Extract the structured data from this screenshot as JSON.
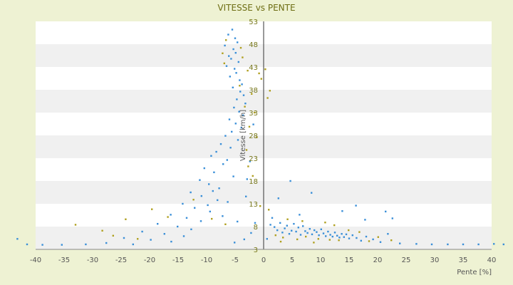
{
  "chart_data": {
    "type": "scatter",
    "title": "VITESSE vs PENTE",
    "xlabel": "Pente [%]",
    "ylabel": "Vitesse [km/h]",
    "xlim": [
      -40,
      40
    ],
    "ylim": [
      3,
      53
    ],
    "xticks": [
      "-40",
      "-35",
      "-30",
      "-25",
      "-20",
      "-15",
      "-10",
      "-5",
      "0",
      "5",
      "10",
      "15",
      "20",
      "25",
      "30",
      "35",
      "40"
    ],
    "yticks": [
      "3",
      "8",
      "13",
      "18",
      "23",
      "28",
      "33",
      "38",
      "43",
      "48",
      "53"
    ],
    "grid": "horizontal alternating bands",
    "legend": "none",
    "colors": {
      "background": "#eef2d3",
      "band_light": "#ffffff",
      "band_dark": "#f0f0f0",
      "series_1": "#3a8fd8",
      "series_2": "#b0a020",
      "axis": "#333333"
    },
    "series": [
      {
        "values": [
          [
            -5.5,
            51.2
          ],
          [
            -6.2,
            50.1
          ],
          [
            -5.0,
            49.3
          ],
          [
            -4.6,
            48.4
          ],
          [
            -6.8,
            47.7
          ],
          [
            -5.3,
            46.9
          ],
          [
            -4.9,
            46.1
          ],
          [
            -6.1,
            45.4
          ],
          [
            -5.7,
            44.8
          ],
          [
            -4.4,
            44.1
          ],
          [
            -6.5,
            43.2
          ],
          [
            -5.1,
            42.6
          ],
          [
            -4.8,
            41.7
          ],
          [
            -5.9,
            40.9
          ],
          [
            -4.2,
            40.1
          ],
          [
            -3.8,
            39.2
          ],
          [
            -5.4,
            38.5
          ],
          [
            -4.1,
            37.6
          ],
          [
            -3.5,
            36.8
          ],
          [
            -4.7,
            35.9
          ],
          [
            -3.2,
            35.0
          ],
          [
            -5.2,
            34.1
          ],
          [
            -4.3,
            33.2
          ],
          [
            -3.6,
            32.4
          ],
          [
            -6.0,
            31.5
          ],
          [
            -4.9,
            30.6
          ],
          [
            -3.9,
            29.7
          ],
          [
            -5.6,
            28.8
          ],
          [
            -6.7,
            27.9
          ],
          [
            -4.5,
            27.0
          ],
          [
            -7.5,
            26.1
          ],
          [
            -5.8,
            25.3
          ],
          [
            -8.3,
            24.4
          ],
          [
            -9.2,
            23.5
          ],
          [
            -6.4,
            22.6
          ],
          [
            -7.1,
            21.7
          ],
          [
            -10.4,
            20.8
          ],
          [
            -8.7,
            19.9
          ],
          [
            -5.3,
            19.0
          ],
          [
            -11.2,
            18.2
          ],
          [
            -9.6,
            17.3
          ],
          [
            -7.8,
            16.4
          ],
          [
            -12.8,
            15.5
          ],
          [
            -10.9,
            14.7
          ],
          [
            -8.1,
            13.8
          ],
          [
            -14.2,
            13.0
          ],
          [
            -12.1,
            12.1
          ],
          [
            -9.4,
            11.3
          ],
          [
            -16.3,
            10.6
          ],
          [
            -13.5,
            9.9
          ],
          [
            -11.0,
            9.2
          ],
          [
            -18.6,
            8.6
          ],
          [
            -15.1,
            8.0
          ],
          [
            -12.7,
            7.4
          ],
          [
            -21.3,
            6.9
          ],
          [
            -17.4,
            6.4
          ],
          [
            -14.0,
            5.9
          ],
          [
            -24.5,
            5.5
          ],
          [
            -19.8,
            5.1
          ],
          [
            -16.2,
            4.7
          ],
          [
            -27.6,
            4.4
          ],
          [
            -22.9,
            4.1
          ],
          [
            -9.8,
            12.7
          ],
          [
            -7.2,
            10.3
          ],
          [
            -4.6,
            9.1
          ],
          [
            -3.1,
            14.6
          ],
          [
            -2.4,
            22.3
          ],
          [
            -1.8,
            30.4
          ],
          [
            -2.9,
            18.4
          ],
          [
            -8.9,
            15.8
          ],
          [
            -6.3,
            13.4
          ],
          [
            -1.5,
            8.8
          ],
          [
            -2.2,
            6.6
          ],
          [
            -3.4,
            5.2
          ],
          [
            -5.1,
            4.5
          ],
          [
            -31.2,
            4.1
          ],
          [
            -35.4,
            4.0
          ],
          [
            -38.8,
            4.0
          ],
          [
            -41.5,
            4.1
          ],
          [
            -43.2,
            5.3
          ],
          [
            1.2,
            8.4
          ],
          [
            1.9,
            7.9
          ],
          [
            2.4,
            7.2
          ],
          [
            2.9,
            8.8
          ],
          [
            3.3,
            6.7
          ],
          [
            3.7,
            7.6
          ],
          [
            4.1,
            8.2
          ],
          [
            4.5,
            6.4
          ],
          [
            4.9,
            7.1
          ],
          [
            5.3,
            8.6
          ],
          [
            5.7,
            6.9
          ],
          [
            6.1,
            7.8
          ],
          [
            6.5,
            6.2
          ],
          [
            6.9,
            8.1
          ],
          [
            7.3,
            7.0
          ],
          [
            7.7,
            6.6
          ],
          [
            8.1,
            7.5
          ],
          [
            8.5,
            6.3
          ],
          [
            8.9,
            7.2
          ],
          [
            9.3,
            6.8
          ],
          [
            9.7,
            6.1
          ],
          [
            10.1,
            7.4
          ],
          [
            10.5,
            6.5
          ],
          [
            10.9,
            5.9
          ],
          [
            11.3,
            6.9
          ],
          [
            11.7,
            6.2
          ],
          [
            12.1,
            5.8
          ],
          [
            12.5,
            6.7
          ],
          [
            12.9,
            6.0
          ],
          [
            13.3,
            5.6
          ],
          [
            13.7,
            6.4
          ],
          [
            14.1,
            5.7
          ],
          [
            14.5,
            6.3
          ],
          [
            15.0,
            5.4
          ],
          [
            15.6,
            6.1
          ],
          [
            16.3,
            5.5
          ],
          [
            17.1,
            4.9
          ],
          [
            18.0,
            5.8
          ],
          [
            19.2,
            5.2
          ],
          [
            20.5,
            4.6
          ],
          [
            21.8,
            6.4
          ],
          [
            22.6,
            9.8
          ],
          [
            21.4,
            11.3
          ],
          [
            17.8,
            9.5
          ],
          [
            16.2,
            12.6
          ],
          [
            13.8,
            11.4
          ],
          [
            8.4,
            15.4
          ],
          [
            4.7,
            18.0
          ],
          [
            2.6,
            14.2
          ],
          [
            6.3,
            10.6
          ],
          [
            23.9,
            4.3
          ],
          [
            26.8,
            4.2
          ],
          [
            29.5,
            4.1
          ],
          [
            32.3,
            4.1
          ],
          [
            35.0,
            4.1
          ],
          [
            37.7,
            4.1
          ],
          [
            40.4,
            4.2
          ],
          [
            42.1,
            4.1
          ],
          [
            0.6,
            5.3
          ],
          [
            1.5,
            9.9
          ]
        ]
      },
      {
        "values": [
          [
            -6.6,
            48.9
          ],
          [
            -4.0,
            47.2
          ],
          [
            -7.2,
            46.0
          ],
          [
            -3.7,
            45.1
          ],
          [
            -6.9,
            43.8
          ],
          [
            -2.8,
            42.2
          ],
          [
            -4.2,
            38.9
          ],
          [
            -2.1,
            37.1
          ],
          [
            -3.3,
            34.3
          ],
          [
            -1.6,
            33.0
          ],
          [
            -2.5,
            29.9
          ],
          [
            -1.2,
            27.6
          ],
          [
            -3.0,
            24.8
          ],
          [
            -0.8,
            41.6
          ],
          [
            -0.4,
            40.4
          ],
          [
            0.3,
            42.5
          ],
          [
            1.1,
            37.8
          ],
          [
            0.7,
            36.2
          ],
          [
            -2.7,
            21.2
          ],
          [
            -1.9,
            19.1
          ],
          [
            -33.0,
            8.4
          ],
          [
            -28.3,
            7.1
          ],
          [
            -24.2,
            9.6
          ],
          [
            -19.6,
            11.8
          ],
          [
            -16.8,
            10.1
          ],
          [
            -12.3,
            13.9
          ],
          [
            -9.1,
            9.7
          ],
          [
            -6.7,
            8.5
          ],
          [
            -22.1,
            5.3
          ],
          [
            -26.4,
            6.0
          ],
          [
            2.1,
            6.1
          ],
          [
            3.4,
            5.6
          ],
          [
            5.9,
            5.2
          ],
          [
            7.4,
            5.8
          ],
          [
            9.6,
            5.3
          ],
          [
            11.6,
            5.1
          ],
          [
            13.2,
            5.0
          ],
          [
            14.9,
            7.2
          ],
          [
            16.8,
            6.8
          ],
          [
            18.5,
            4.8
          ],
          [
            20.1,
            5.7
          ],
          [
            22.4,
            5.0
          ],
          [
            6.8,
            9.2
          ],
          [
            10.8,
            8.9
          ],
          [
            12.4,
            8.3
          ],
          [
            4.2,
            9.6
          ],
          [
            0.9,
            11.7
          ],
          [
            -0.6,
            12.5
          ],
          [
            3.0,
            4.7
          ],
          [
            8.8,
            4.5
          ]
        ]
      }
    ]
  }
}
